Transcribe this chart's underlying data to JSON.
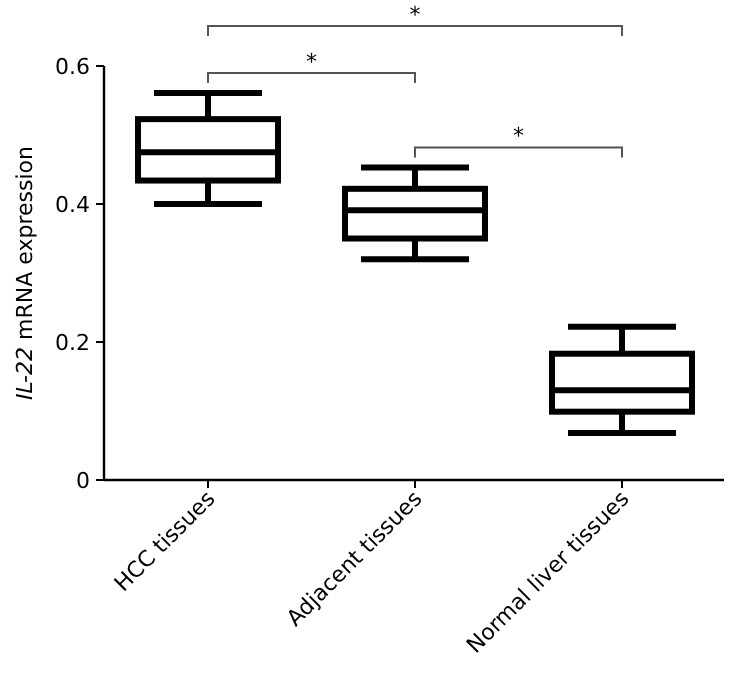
{
  "chart_data": {
    "type": "box",
    "ylabel": "IL-22 mRNA expression",
    "categories": [
      "HCC tissues",
      "Adjacent tissues",
      "Normal liver tissues"
    ],
    "boxes": [
      {
        "low": 0.4,
        "q1": 0.434,
        "median": 0.475,
        "q3": 0.523,
        "high": 0.561
      },
      {
        "low": 0.32,
        "q1": 0.35,
        "median": 0.391,
        "q3": 0.422,
        "high": 0.453
      },
      {
        "low": 0.068,
        "q1": 0.099,
        "median": 0.13,
        "q3": 0.183,
        "high": 0.222
      }
    ],
    "color": "#000000",
    "ylim": [
      0,
      0.6
    ],
    "yticks": [
      0,
      0.2,
      0.4,
      0.6
    ],
    "grid": false,
    "annotations": [
      "*",
      "*",
      "*"
    ]
  }
}
